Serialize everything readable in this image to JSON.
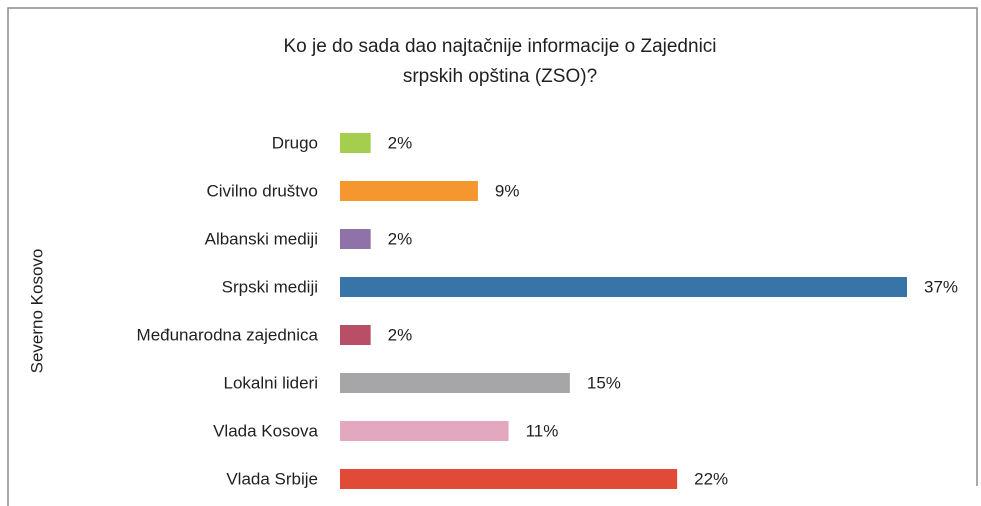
{
  "chart_data": {
    "type": "bar",
    "orientation": "horizontal",
    "title": [
      "Ko je do sada dao najtačnije informacije o Zajednici",
      "srpskih opština (ZSO)?"
    ],
    "ylabel": "Severno Kosovo",
    "categories": [
      "Drugo",
      "Civilno društvo",
      "Albanski mediji",
      "Srpski mediji",
      "Međunarodna zajednica",
      "Lokalni lideri",
      "Vlada Kosova",
      "Vlada Srbije"
    ],
    "values": [
      2,
      9,
      2,
      37,
      2,
      15,
      11,
      22
    ],
    "value_labels": [
      "2%",
      "9%",
      "2%",
      "37%",
      "2%",
      "15%",
      "11%",
      "22%"
    ],
    "colors": [
      "#a5cd4e",
      "#f5962f",
      "#8e72a8",
      "#3775a8",
      "#b84f66",
      "#a6a6a8",
      "#e2a8c0",
      "#e04a36"
    ]
  }
}
